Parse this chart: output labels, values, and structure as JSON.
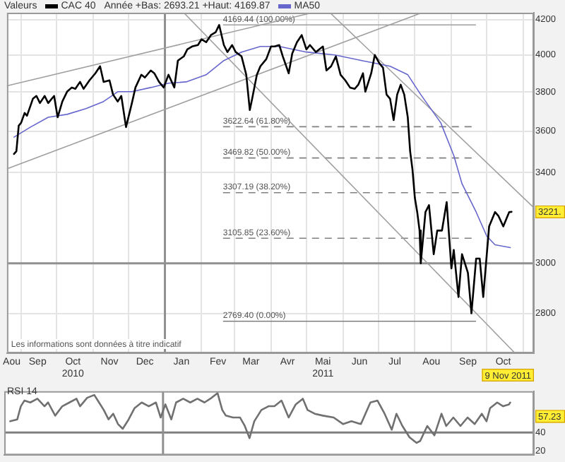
{
  "chart_data": [
    {
      "type": "line",
      "legend_title": "Valeurs",
      "legend": "top left",
      "log": true,
      "grid": true,
      "marker": "none",
      "xlim": [
        "2010-08-20",
        "2011-11-10"
      ],
      "xticks": [
        {
          "value": "2010-08-24",
          "label": "Aou"
        },
        {
          "value": "2010-09-01",
          "label": null
        },
        {
          "value": "2010-09-15",
          "label": "Sep"
        },
        {
          "value": "2010-10-01",
          "label": null
        },
        {
          "value": "2010-10-15",
          "label": "Oct\n2010"
        },
        {
          "value": "2010-11-01",
          "label": null
        },
        {
          "value": "2010-11-15",
          "label": "Nov"
        },
        {
          "value": "2010-12-01",
          "label": null
        },
        {
          "value": "2010-12-15",
          "label": "Dec"
        },
        {
          "value": "2011-01-15",
          "label": "Jan"
        },
        {
          "value": "2011-02-01",
          "label": null
        },
        {
          "value": "2011-02-15",
          "label": "Fev"
        },
        {
          "value": "2011-03-01",
          "label": null
        },
        {
          "value": "2011-03-15",
          "label": "Mar"
        },
        {
          "value": "2011-04-01",
          "label": null
        },
        {
          "value": "2011-04-15",
          "label": "Avr"
        },
        {
          "value": "2011-05-01",
          "label": null
        },
        {
          "value": "2011-05-15",
          "label": "Mai\n2011"
        },
        {
          "value": "2011-06-01",
          "label": null
        },
        {
          "value": "2011-06-15",
          "label": "Jun"
        },
        {
          "value": "2011-07-01",
          "label": null
        },
        {
          "value": "2011-07-15",
          "label": "Jul"
        },
        {
          "value": "2011-08-01",
          "label": null
        },
        {
          "value": "2011-08-15",
          "label": "Aou"
        },
        {
          "value": "2011-09-01",
          "label": null
        },
        {
          "value": "2011-09-15",
          "label": "Sep"
        },
        {
          "value": "2011-10-01",
          "label": null
        },
        {
          "value": "2011-10-15",
          "label": "Oct"
        },
        {
          "value": "2011-11-01",
          "label": null
        }
      ],
      "ylim": [
        2650,
        4240
      ],
      "yticks": [
        2800,
        3000,
        3400,
        3600,
        3800,
        4000,
        4200
      ],
      "series": [
        {
          "name": "CAC 40",
          "color": "#000000",
          "x": [
            "2010-08-26",
            "2010-08-28",
            "2010-08-30",
            "2010-09-01",
            "2010-09-04",
            "2010-09-06",
            "2010-09-11",
            "2010-09-14",
            "2010-09-17",
            "2010-09-21",
            "2010-09-24",
            "2010-09-29",
            "2010-10-02",
            "2010-10-06",
            "2010-10-10",
            "2010-10-14",
            "2010-10-17",
            "2010-10-21",
            "2010-10-24",
            "2010-10-29",
            "2010-11-03",
            "2010-11-07",
            "2010-11-10",
            "2010-11-15",
            "2010-11-18",
            "2010-11-22",
            "2010-11-25",
            "2010-11-29",
            "2010-12-04",
            "2010-12-07",
            "2010-12-12",
            "2010-12-15",
            "2010-12-20",
            "2010-12-23",
            "2010-12-27",
            "2010-12-31",
            "2011-01-04",
            "2011-01-09",
            "2011-01-12",
            "2011-01-17",
            "2011-01-20",
            "2011-01-24",
            "2011-01-29",
            "2011-02-01",
            "2011-02-05",
            "2011-02-09",
            "2011-02-13",
            "2011-02-16",
            "2011-02-20",
            "2011-02-23",
            "2011-02-27",
            "2011-03-02",
            "2011-03-07",
            "2011-03-11",
            "2011-03-14",
            "2011-03-16",
            "2011-03-20",
            "2011-03-23",
            "2011-03-28",
            "2011-04-01",
            "2011-04-04",
            "2011-04-08",
            "2011-04-11",
            "2011-04-16",
            "2011-04-19",
            "2011-04-23",
            "2011-04-27",
            "2011-05-01",
            "2011-05-04",
            "2011-05-09",
            "2011-05-15",
            "2011-05-18",
            "2011-05-22",
            "2011-05-26",
            "2011-05-30",
            "2011-06-03",
            "2011-06-07",
            "2011-06-11",
            "2011-06-14",
            "2011-06-18",
            "2011-06-20",
            "2011-06-25",
            "2011-06-28",
            "2011-07-02",
            "2011-07-05",
            "2011-07-08",
            "2011-07-11",
            "2011-07-14",
            "2011-07-17",
            "2011-07-20",
            "2011-07-23",
            "2011-07-26",
            "2011-07-28",
            "2011-07-30",
            "2011-08-01",
            "2011-08-03",
            "2011-08-05",
            "2011-08-06",
            "2011-08-10",
            "2011-08-13",
            "2011-08-17",
            "2011-08-20",
            "2011-08-24",
            "2011-08-28",
            "2011-09-01",
            "2011-09-03",
            "2011-09-07",
            "2011-09-10",
            "2011-09-15",
            "2011-09-18",
            "2011-09-22",
            "2011-09-25",
            "2011-09-28",
            "2011-10-03",
            "2011-10-08",
            "2011-10-11",
            "2011-10-15",
            "2011-10-20",
            "2011-10-22"
          ],
          "values": [
            3489,
            3502,
            3628,
            3642,
            3692,
            3678,
            3765,
            3780,
            3743,
            3780,
            3743,
            3780,
            3670,
            3751,
            3802,
            3824,
            3817,
            3854,
            3817,
            3862,
            3900,
            3938,
            3854,
            3862,
            3787,
            3751,
            3780,
            3621,
            3743,
            3824,
            3892,
            3877,
            3915,
            3900,
            3854,
            3824,
            3892,
            3824,
            3969,
            3992,
            4031,
            4047,
            4055,
            4087,
            4071,
            4111,
            4127,
            4169,
            4055,
            4016,
            4055,
            4016,
            3992,
            3892,
            3707,
            3765,
            3892,
            3938,
            3977,
            4047,
            4047,
            4055,
            3992,
            3900,
            4008,
            4071,
            4111,
            4031,
            4055,
            4016,
            4047,
            3915,
            3938,
            3992,
            3892,
            3862,
            3824,
            3817,
            3839,
            3900,
            3802,
            3900,
            4000,
            3953,
            3930,
            3787,
            3765,
            3656,
            3787,
            3839,
            3787,
            3670,
            3502,
            3414,
            3284,
            3220,
            3139,
            3000,
            3220,
            3251,
            3038,
            3139,
            3139,
            3265,
            2979,
            3056,
            2864,
            3038,
            2961,
            2800,
            3020,
            3020,
            2864,
            3157,
            3220,
            3202,
            3157,
            3220,
            3221
          ]
        },
        {
          "name": "MA50",
          "color": "#6666cc",
          "x": [
            "2010-08-26",
            "2010-09-09",
            "2010-09-24",
            "2010-10-10",
            "2010-10-26",
            "2010-11-10",
            "2010-11-22",
            "2010-12-04",
            "2010-12-20",
            "2011-01-04",
            "2011-01-19",
            "2011-02-05",
            "2011-02-20",
            "2011-03-07",
            "2011-03-23",
            "2011-04-08",
            "2011-05-01",
            "2011-05-25",
            "2011-06-17",
            "2011-07-11",
            "2011-07-26",
            "2011-08-06",
            "2011-08-23",
            "2011-09-03",
            "2011-09-10",
            "2011-09-22",
            "2011-10-01",
            "2011-10-08",
            "2011-10-21"
          ],
          "values": [
            3571,
            3621,
            3670,
            3685,
            3714,
            3751,
            3802,
            3802,
            3824,
            3847,
            3854,
            3892,
            3969,
            4016,
            4047,
            4047,
            4016,
            4000,
            3969,
            3938,
            3892,
            3787,
            3642,
            3482,
            3348,
            3220,
            3115,
            3078,
            3066
          ]
        },
        {
          "type": "line",
          "color": "#a0a0a0",
          "x": [
            "2010-08-20",
            "2011-05-06"
          ],
          "values": [
            3833,
            4240
          ]
        },
        {
          "type": "line",
          "color": "#a0a0a0",
          "x": [
            "2010-08-20",
            "2011-08-07"
          ],
          "values": [
            3418,
            4240
          ]
        },
        {
          "type": "line",
          "color": "#a0a0a0",
          "x": [
            "2011-01-17",
            "2011-10-25"
          ],
          "values": [
            4240,
            2650
          ]
        },
        {
          "type": "line",
          "color": "#a0a0a0",
          "x": [
            "2011-05-21",
            "2011-11-10"
          ],
          "values": [
            4240,
            3239
          ]
        }
      ],
      "ref_lines": [
        {
          "axis": "y",
          "value": 4169.44,
          "label": "4169.44 (100.00%)",
          "line_style": "solid",
          "color": "#a0a0a0"
        },
        {
          "axis": "y",
          "value": 3622.64,
          "label": "3622.64 (61.80%)",
          "line_style": "dashed",
          "color": "#808080"
        },
        {
          "axis": "y",
          "value": 3469.82,
          "label": "3469.82 (50.00%)",
          "line_style": "dashed",
          "color": "#808080"
        },
        {
          "axis": "y",
          "value": 3307.19,
          "label": "3307.19 (38.20%)",
          "line_style": "dashed",
          "color": "#808080"
        },
        {
          "axis": "y",
          "value": 3105.85,
          "label": "3105.85 (23.60%)",
          "line_style": "dashed",
          "color": "#808080"
        },
        {
          "axis": "y",
          "value": 2769.4,
          "label": "2769.40 (0.00%)",
          "line_style": "solid",
          "color": "#808080"
        },
        {
          "axis": "y",
          "value": 3000,
          "color": "#909090"
        },
        {
          "axis": "x",
          "value": "2011-01-01",
          "color": "#909090"
        }
      ],
      "annotations": [
        "Année +Bas: 2693.21 +Haut: 4169.87",
        "Les informations sont données à titre indicatif",
        "9 Nov 2011",
        {
          "text": "3221.",
          "y": 3221
        }
      ]
    },
    {
      "type": "line",
      "title": "RSI 14",
      "tick_labels": "y",
      "marker": "none",
      "xlim": [
        "2010-08-20",
        "2011-11-10"
      ],
      "ylim": [
        16,
        84
      ],
      "yticks": [
        20,
        40
      ],
      "series": [
        {
          "color": "#707070",
          "x": [
            "2010-08-25",
            "2010-08-31",
            "2010-09-03",
            "2010-09-06",
            "2010-09-11",
            "2010-09-17",
            "2010-09-23",
            "2010-09-26",
            "2010-10-02",
            "2010-10-08",
            "2010-10-14",
            "2010-10-20",
            "2010-10-23",
            "2010-10-29",
            "2010-11-04",
            "2010-11-08",
            "2010-11-12",
            "2010-11-16",
            "2010-11-20",
            "2010-11-24",
            "2010-11-28",
            "2010-12-03",
            "2010-12-08",
            "2010-12-14",
            "2010-12-20",
            "2010-12-26",
            "2010-12-30",
            "2011-01-03",
            "2011-01-08",
            "2011-01-12",
            "2011-01-18",
            "2011-01-24",
            "2011-01-30",
            "2011-02-05",
            "2011-02-11",
            "2011-02-16",
            "2011-02-20",
            "2011-02-23",
            "2011-03-01",
            "2011-03-07",
            "2011-03-11",
            "2011-03-15",
            "2011-03-19",
            "2011-03-25",
            "2011-03-31",
            "2011-04-05",
            "2011-04-11",
            "2011-04-17",
            "2011-04-23",
            "2011-04-29",
            "2011-05-03",
            "2011-05-09",
            "2011-05-16",
            "2011-05-25",
            "2011-06-02",
            "2011-06-09",
            "2011-06-17",
            "2011-06-25",
            "2011-07-01",
            "2011-07-07",
            "2011-07-13",
            "2011-07-17",
            "2011-07-22",
            "2011-07-28",
            "2011-08-03",
            "2011-08-06",
            "2011-08-12",
            "2011-08-18",
            "2011-08-24",
            "2011-08-28",
            "2011-09-03",
            "2011-09-09",
            "2011-09-15",
            "2011-09-21",
            "2011-09-27",
            "2011-10-01",
            "2011-10-04",
            "2011-10-10",
            "2011-10-15",
            "2011-10-20",
            "2011-10-21"
          ],
          "values": [
            52,
            54,
            68,
            74,
            72,
            76,
            68,
            72,
            58,
            68,
            72,
            76,
            68,
            77,
            80,
            72,
            64,
            54,
            60,
            49,
            44,
            54,
            66,
            72,
            68,
            72,
            56,
            70,
            54,
            72,
            76,
            72,
            76,
            72,
            77,
            82,
            64,
            58,
            56,
            56,
            47,
            34,
            52,
            64,
            68,
            68,
            74,
            56,
            70,
            76,
            64,
            60,
            58,
            56,
            49,
            52,
            49,
            72,
            74,
            60,
            43,
            60,
            47,
            35,
            29,
            31,
            47,
            37,
            60,
            47,
            56,
            47,
            56,
            49,
            60,
            52,
            66,
            72,
            68,
            70,
            72
          ]
        }
      ],
      "ref_lines": [
        {
          "axis": "y",
          "value": 40,
          "color": "#808080"
        },
        {
          "axis": "x",
          "value": "2011-01-01",
          "color": "#909090"
        }
      ],
      "annotations": [
        {
          "text": "57.23",
          "y": 57.23
        }
      ]
    }
  ]
}
